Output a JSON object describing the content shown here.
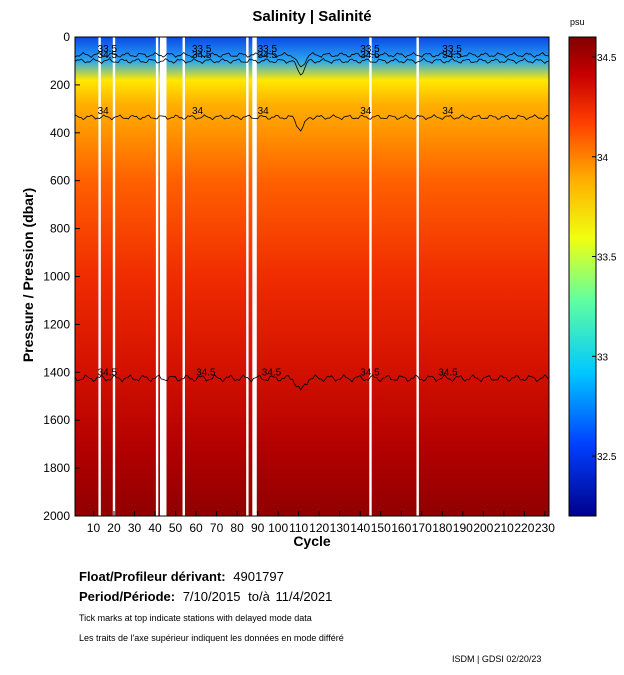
{
  "chart_data": {
    "type": "heatmap",
    "title": "Salinity | Salinité",
    "xlabel": "Cycle",
    "ylabel": "Pressure / Pression (dbar)",
    "colorbar_unit": "psu",
    "xlim": [
      1,
      232
    ],
    "ylim": [
      0,
      2000
    ],
    "y_inverted": true,
    "x_ticks": [
      "10",
      "20",
      "30",
      "40",
      "50",
      "60",
      "70",
      "80",
      "90",
      "100",
      "110",
      "120",
      "130",
      "140",
      "150",
      "160",
      "170",
      "180",
      "190",
      "200",
      "210",
      "220",
      "230"
    ],
    "y_ticks": [
      "0",
      "200",
      "400",
      "600",
      "800",
      "1000",
      "1200",
      "1400",
      "1600",
      "1800",
      "2000"
    ],
    "colorbar_range": [
      32.2,
      34.6
    ],
    "colorbar_ticks": [
      "34.5",
      "34",
      "33.5",
      "33",
      "32.5"
    ],
    "contours": [
      {
        "level": "33.5",
        "approx_pressure_dbar": 75
      },
      {
        "level": "34.5",
        "approx_pressure_dbar": 100
      },
      {
        "level": "34",
        "approx_pressure_dbar": 335
      },
      {
        "level": "34.5",
        "approx_pressure_dbar": 1425
      }
    ],
    "gap_cycles": [
      13,
      20,
      41,
      43,
      44,
      45,
      54,
      85,
      88,
      89,
      145,
      168
    ]
  },
  "info": {
    "float_label": "Float/Profileur dérivant:",
    "float_id": "4901797",
    "period_label": "Period/Période:",
    "period_start": "7/10/2015",
    "period_sep": "to/à",
    "period_end": "11/4/2021",
    "note_en": "Tick marks at top indicate stations with delayed mode data",
    "note_fr": "Les traits de l'axe supérieur indiquent les données en mode différé",
    "credit": "ISDM | GDSI  02/20/23"
  }
}
